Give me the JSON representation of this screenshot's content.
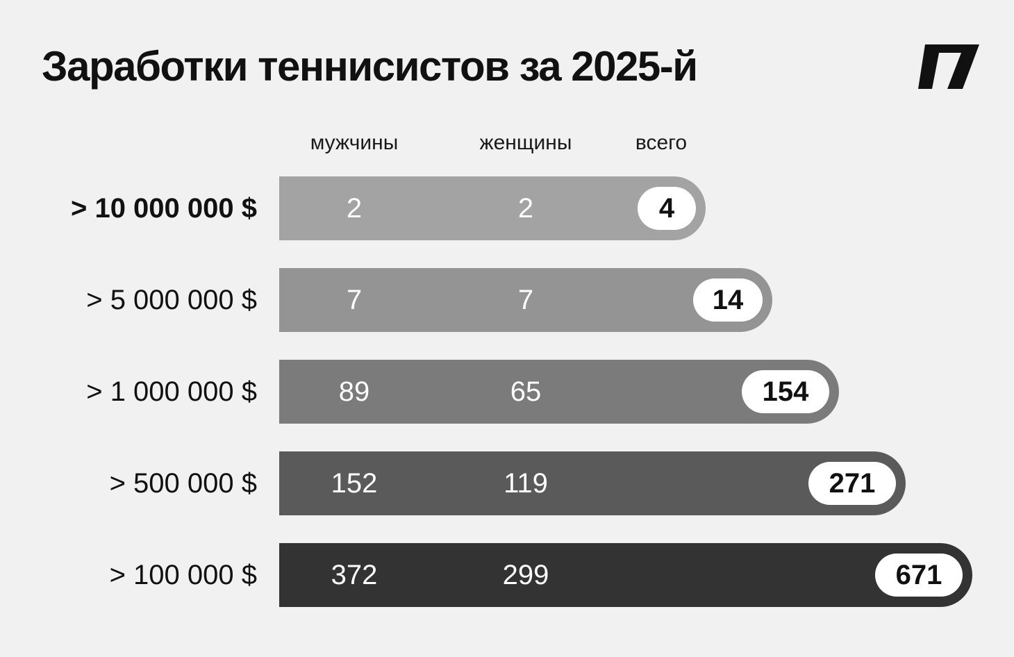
{
  "title": "Заработки теннисистов за 2025-й",
  "logo": "publisher-logo",
  "chart_data": {
    "type": "bar",
    "columns": [
      "мужчины",
      "женщины",
      "всего"
    ],
    "categories": [
      "> 10 000 000 $",
      "> 5 000 000 $",
      "> 1 000 000 $",
      "> 500 000 $",
      "> 100 000 $"
    ],
    "series": [
      {
        "name": "мужчины",
        "values": [
          2,
          7,
          89,
          152,
          372
        ]
      },
      {
        "name": "женщины",
        "values": [
          2,
          7,
          65,
          119,
          299
        ]
      },
      {
        "name": "всего",
        "values": [
          4,
          14,
          154,
          271,
          671
        ]
      }
    ],
    "bar_colors": [
      "#a3a3a3",
      "#949494",
      "#7b7b7b",
      "#5a5a5a",
      "#333333"
    ],
    "pill_color": "#ffffff"
  }
}
